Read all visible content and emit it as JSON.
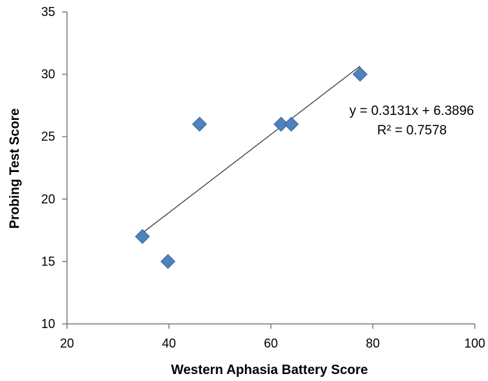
{
  "chart_data": {
    "type": "scatter",
    "title": "",
    "xlabel": "Western Aphasia Battery Score",
    "ylabel": "Probing Test Score",
    "xlim": [
      20,
      100
    ],
    "ylim": [
      10,
      35
    ],
    "xticks": [
      20,
      40,
      60,
      80,
      100
    ],
    "yticks": [
      10,
      15,
      20,
      25,
      30,
      35
    ],
    "grid": false,
    "marker": "diamond",
    "colors": {
      "marker": "#4F81BD",
      "marker_edge": "#3A6699",
      "trendline": "#404040",
      "axis": "#7f7f7f"
    },
    "series": [
      {
        "x": [
          34.8,
          39.8,
          46.0,
          62.0,
          64.0,
          77.5
        ],
        "y": [
          17,
          15,
          26,
          26,
          26,
          30
        ]
      }
    ],
    "trendline": {
      "type": "linear",
      "slope": 0.3131,
      "intercept": 6.3896,
      "x_range": [
        34.8,
        77.5
      ],
      "equation_label": "y = 0.3131x + 6.3896",
      "r2_label": "R² = 0.7578"
    }
  }
}
